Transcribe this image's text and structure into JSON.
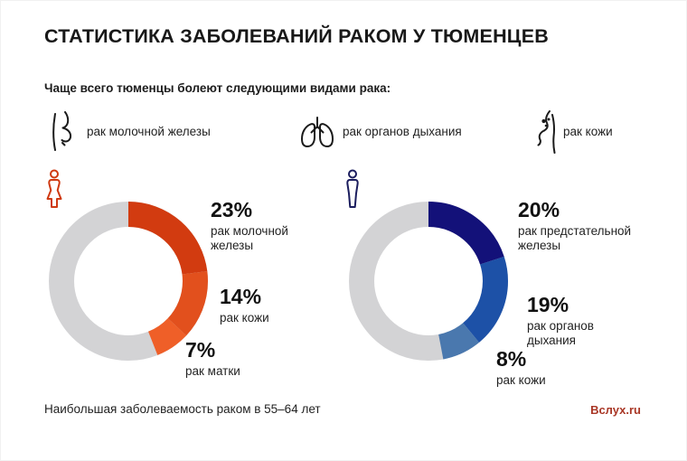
{
  "title": "СТАТИСТИКА ЗАБОЛЕВАНИЙ РАКОМ У ТЮМЕНЦЕВ",
  "subtitle": "Чаще всего тюменцы болеют следующими видами рака:",
  "legend": {
    "items": [
      {
        "icon": "breast-icon",
        "label": "рак молочной железы"
      },
      {
        "icon": "lungs-icon",
        "label": "рак органов дыхания"
      },
      {
        "icon": "skin-icon",
        "label": "рак кожи"
      }
    ]
  },
  "chart_data": [
    {
      "type": "pie",
      "variant": "donut",
      "group": "women",
      "group_icon": "woman-icon",
      "icon_color": "#cf3a12",
      "track_color": "#d3d3d5",
      "start_angle_deg": 0,
      "direction": "clockwise",
      "unit": "%",
      "slices": [
        {
          "label": "рак молочной железы",
          "value": 23,
          "pct_label": "23%",
          "color": "#d23b10"
        },
        {
          "label": "рак кожи",
          "value": 14,
          "pct_label": "14%",
          "color": "#e2501d"
        },
        {
          "label": "рак матки",
          "value": 7,
          "pct_label": "7%",
          "color": "#ef5f28"
        }
      ]
    },
    {
      "type": "pie",
      "variant": "donut",
      "group": "men",
      "group_icon": "man-icon",
      "icon_color": "#1b1d5e",
      "track_color": "#d3d3d5",
      "start_angle_deg": 0,
      "direction": "clockwise",
      "unit": "%",
      "slices": [
        {
          "label": "рак предстательной железы",
          "value": 20,
          "pct_label": "20%",
          "color": "#131179"
        },
        {
          "label": "рак органов дыхания",
          "value": 19,
          "pct_label": "19%",
          "color": "#1d51a7"
        },
        {
          "label": "рак кожи",
          "value": 8,
          "pct_label": "8%",
          "color": "#4a78ae"
        }
      ]
    }
  ],
  "footer": {
    "note": "Наибольшая заболеваемость раком в 55–64 лет",
    "brand": "Вслух.ru",
    "brand_color": "#a93726"
  }
}
